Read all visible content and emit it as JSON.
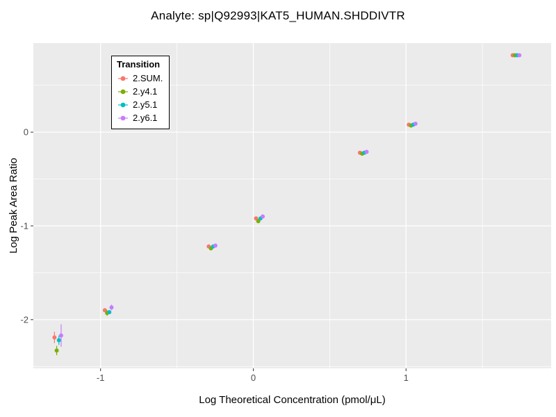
{
  "page": {
    "title": "Analyte: sp|Q92993|KAT5_HUMAN.SHDDIVTR"
  },
  "chart_data": {
    "type": "scatter",
    "title": "Analyte: sp|Q92993|KAT5_HUMAN.SHDDIVTR",
    "xlabel": "Log Theoretical Concentration (pmol/μL)",
    "ylabel": "Log Peak Area Ratio",
    "xlim": [
      -1.44,
      1.95
    ],
    "ylim": [
      -2.52,
      0.95
    ],
    "x_ticks": [
      -1,
      0,
      1
    ],
    "y_ticks": [
      -2,
      -1,
      0
    ],
    "grid": true,
    "panel_background": "#EBEBEB",
    "gridline_color": "#FFFFFF",
    "tick_label_color": "#4D4D4D",
    "legend": {
      "title": "Transition",
      "position": "top-left-inside",
      "entries": [
        {
          "label": "2.SUM.",
          "color": "#F8766D"
        },
        {
          "label": "2.y4.1",
          "color": "#7CAE00"
        },
        {
          "label": "2.y5.1",
          "color": "#00BFC4"
        },
        {
          "label": "2.y6.1",
          "color": "#C77CFF"
        }
      ]
    },
    "x": [
      -1.28,
      -0.95,
      -0.27,
      0.04,
      0.72,
      1.04,
      1.72
    ],
    "series": [
      {
        "name": "2.SUM.",
        "color": "#F8766D",
        "y": [
          -2.19,
          -1.9,
          -1.22,
          -0.92,
          -0.22,
          0.08,
          0.82
        ],
        "err": [
          0.06,
          0.02,
          0.015,
          0.015,
          0.01,
          0.01,
          0.008
        ]
      },
      {
        "name": "2.y4.1",
        "color": "#7CAE00",
        "y": [
          -2.33,
          -1.93,
          -1.24,
          -0.95,
          -0.23,
          0.07,
          0.82
        ],
        "err": [
          0.05,
          0.03,
          0.015,
          0.015,
          0.01,
          0.01,
          0.008
        ]
      },
      {
        "name": "2.y5.1",
        "color": "#00BFC4",
        "y": [
          -2.22,
          -1.92,
          -1.22,
          -0.92,
          -0.22,
          0.08,
          0.82
        ],
        "err": [
          0.05,
          0.02,
          0.015,
          0.015,
          0.01,
          0.01,
          0.008
        ]
      },
      {
        "name": "2.y6.1",
        "color": "#C77CFF",
        "y": [
          -2.17,
          -1.87,
          -1.21,
          -0.9,
          -0.21,
          0.09,
          0.82
        ],
        "err": [
          0.12,
          0.03,
          0.015,
          0.015,
          0.01,
          0.01,
          0.008
        ]
      }
    ]
  }
}
